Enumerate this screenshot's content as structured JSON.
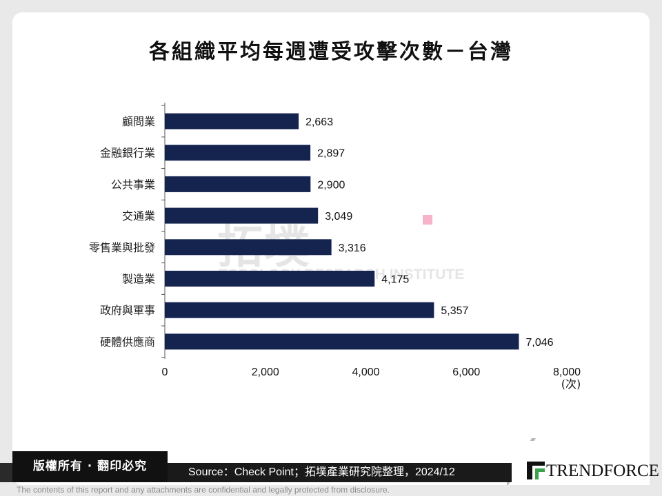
{
  "chart_data": {
    "type": "bar",
    "orientation": "horizontal",
    "title": "各組織平均每週遭受攻擊次數－台灣",
    "categories": [
      "顧問業",
      "金融銀行業",
      "公共事業",
      "交通業",
      "零售業與批發",
      "製造業",
      "政府與軍事",
      "硬體供應商"
    ],
    "values": [
      2663,
      2897,
      2900,
      3049,
      3316,
      4175,
      5357,
      7046
    ],
    "value_labels": [
      "2,663",
      "2,897",
      "2,900",
      "3,049",
      "3,316",
      "4,175",
      "5,357",
      "7,046"
    ],
    "xlim": [
      0,
      8000
    ],
    "ticks": [
      0,
      2000,
      4000,
      6000,
      8000
    ],
    "tick_labels": [
      "0",
      "2,000",
      "4,000",
      "6,000",
      "8,000"
    ],
    "xunit": "(次)",
    "grid": false,
    "legend": "none",
    "bar_color": "#14244f"
  },
  "watermark": {
    "cjk": "拓墣",
    "english": "TOPOLOGY RESEARCH INSTITUTE"
  },
  "footer": {
    "copyright": "版權所有 · 翻印必究",
    "source": "Source：Check Point；拓墣產業研究院整理，2024/12",
    "brand": "TRENDFORCE",
    "disclaimer": "The contents of this report and any attachments are confidential and legally protected from disclosure."
  }
}
